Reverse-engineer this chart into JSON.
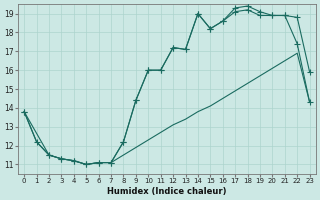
{
  "xlabel": "Humidex (Indice chaleur)",
  "ylabel": "",
  "bg_color": "#cce8e4",
  "grid_color": "#add4ce",
  "line_color": "#1a6b60",
  "xlim": [
    -0.5,
    23.5
  ],
  "ylim": [
    10.5,
    19.5
  ],
  "xticks": [
    0,
    1,
    2,
    3,
    4,
    5,
    6,
    7,
    8,
    9,
    10,
    11,
    12,
    13,
    14,
    15,
    16,
    17,
    18,
    19,
    20,
    21,
    22,
    23
  ],
  "yticks": [
    11,
    12,
    13,
    14,
    15,
    16,
    17,
    18,
    19
  ],
  "line1_x": [
    0,
    1,
    2,
    3,
    4,
    5,
    6,
    7,
    8,
    9,
    10,
    11,
    12,
    13,
    14,
    15,
    16,
    17,
    18,
    19,
    20,
    21,
    22,
    23
  ],
  "line1_y": [
    13.8,
    12.2,
    11.5,
    11.3,
    11.2,
    11.0,
    11.1,
    11.1,
    11.5,
    11.9,
    12.3,
    12.7,
    13.1,
    13.4,
    13.8,
    14.1,
    14.5,
    14.9,
    15.3,
    15.7,
    16.1,
    16.5,
    16.9,
    14.3
  ],
  "line2_x": [
    0,
    1,
    2,
    3,
    4,
    5,
    6,
    7,
    8,
    9,
    10,
    11,
    12,
    13,
    14,
    15,
    16,
    17,
    18,
    19,
    20,
    21,
    22,
    23
  ],
  "line2_y": [
    13.8,
    12.2,
    11.5,
    11.3,
    11.2,
    11.0,
    11.1,
    11.1,
    12.2,
    14.4,
    16.0,
    16.0,
    17.2,
    17.1,
    19.0,
    18.2,
    18.6,
    19.1,
    19.2,
    18.9,
    18.9,
    18.9,
    17.4,
    14.3
  ],
  "line3_x": [
    0,
    2,
    3,
    4,
    5,
    6,
    7,
    8,
    9,
    10,
    11,
    12,
    13,
    14,
    15,
    16,
    17,
    18,
    19,
    20,
    21,
    22,
    23
  ],
  "line3_y": [
    13.8,
    11.5,
    11.3,
    11.2,
    11.0,
    11.1,
    11.1,
    12.2,
    14.4,
    16.0,
    16.0,
    17.2,
    17.1,
    19.0,
    18.2,
    18.6,
    19.3,
    19.4,
    19.1,
    18.9,
    18.9,
    18.8,
    15.9
  ]
}
